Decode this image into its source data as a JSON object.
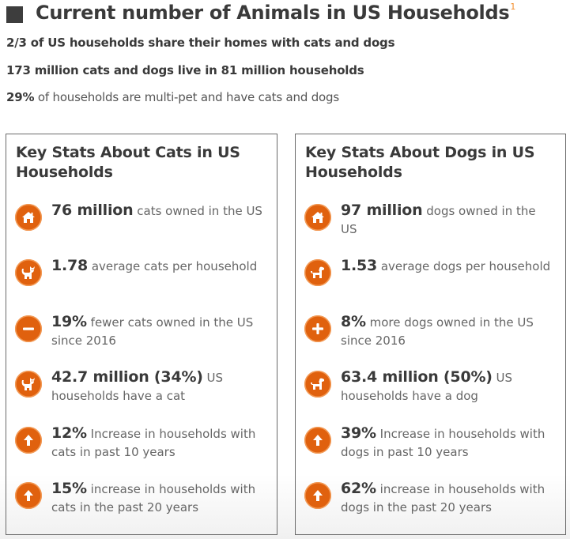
{
  "header": {
    "title": "Current number of Animals in US Households",
    "footnote": "1"
  },
  "intro": [
    {
      "bold": "2/3 of US households share their homes with cats and dogs",
      "rest": ""
    },
    {
      "bold": "173 million cats and dogs live in 81 million households",
      "rest": ""
    },
    {
      "bold": "29%",
      "rest": " of households are multi-pet and have cats and dogs"
    }
  ],
  "colors": {
    "accent": "#e0610e",
    "footnote": "#f28c28",
    "text": "#3a3a3a",
    "muted": "#666666",
    "border": "#6a6a6a"
  },
  "cats": {
    "title": "Key Stats About Cats in US Households",
    "stats": [
      {
        "icon": "home-icon",
        "big": "76 million",
        "rest": " cats owned in the US"
      },
      {
        "icon": "cat-icon",
        "big": "1.78",
        "rest": " average cats per household"
      },
      {
        "icon": "minus-icon",
        "big": "19%",
        "rest": " fewer cats owned in the US since 2016"
      },
      {
        "icon": "cat-icon",
        "big": "42.7 million (34%)",
        "rest": " US households have a cat"
      },
      {
        "icon": "arrow-up-icon",
        "big": "12%",
        "rest": " Increase in households with cats in past 10 years"
      },
      {
        "icon": "arrow-up-icon",
        "big": "15%",
        "rest": " increase in households with cats in the past 20 years"
      }
    ]
  },
  "dogs": {
    "title": "Key Stats About Dogs in US Households",
    "stats": [
      {
        "icon": "home-icon",
        "big": "97 million",
        "rest": " dogs owned in the US"
      },
      {
        "icon": "dog-icon",
        "big": "1.53",
        "rest": " average dogs per household"
      },
      {
        "icon": "plus-icon",
        "big": "8%",
        "rest": " more dogs owned in the US since 2016"
      },
      {
        "icon": "dog-icon",
        "big": "63.4 million (50%)",
        "rest": " US households have a dog"
      },
      {
        "icon": "arrow-up-icon",
        "big": "39%",
        "rest": " Increase in households with dogs in past 10 years"
      },
      {
        "icon": "arrow-up-icon",
        "big": "62%",
        "rest": " increase in households with dogs in the past 20 years"
      }
    ]
  }
}
